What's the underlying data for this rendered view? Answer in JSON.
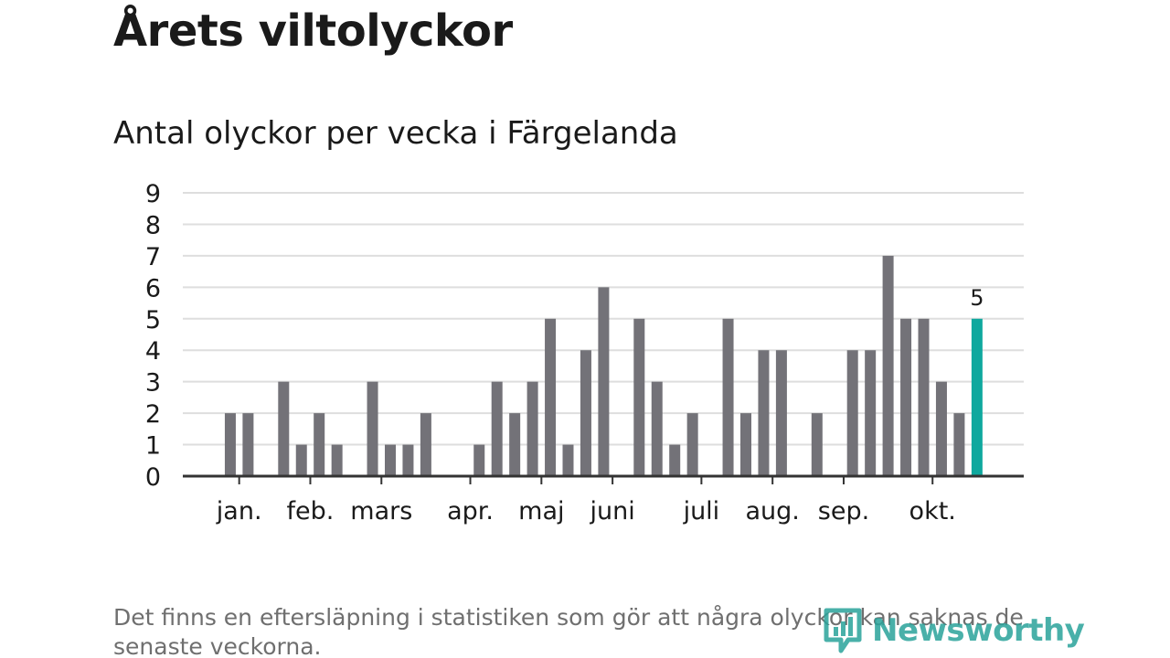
{
  "title": "Årets viltolyckor",
  "subtitle": "Antal olyckor per vecka i Färgelanda",
  "footnote": "Det finns en eftersläpning i statistiken som gör att några olyckor kan saknas de senaste veckorna.",
  "logo": {
    "text": "Newsworthy",
    "icon": "newsworthy-logo-icon"
  },
  "colors": {
    "bar": "#737278",
    "highlight": "#0fa89e",
    "grid": "#dedede",
    "axis": "#333333",
    "text": "#1a1a1a",
    "logo": "#2aa39b"
  },
  "chart_data": {
    "type": "bar",
    "title": "Antal olyckor per vecka i Färgelanda",
    "xlabel": "",
    "ylabel": "",
    "ylim": [
      0,
      9
    ],
    "yticks": [
      0,
      1,
      2,
      3,
      4,
      5,
      6,
      7,
      8,
      9
    ],
    "grid": true,
    "x": [
      1,
      2,
      3,
      4,
      5,
      6,
      7,
      8,
      9,
      10,
      11,
      12,
      13,
      14,
      15,
      16,
      17,
      18,
      19,
      20,
      21,
      22,
      23,
      24,
      25,
      26,
      27,
      28,
      29,
      30,
      31,
      32,
      33,
      34,
      35,
      36,
      37,
      38,
      39,
      40,
      41,
      42,
      43,
      44,
      45
    ],
    "values": [
      0,
      2,
      2,
      0,
      3,
      1,
      2,
      1,
      0,
      3,
      1,
      1,
      2,
      0,
      0,
      1,
      3,
      2,
      3,
      5,
      1,
      4,
      6,
      0,
      5,
      3,
      1,
      2,
      0,
      5,
      2,
      4,
      4,
      0,
      2,
      0,
      4,
      4,
      7,
      5,
      5,
      3,
      2,
      5,
      0
    ],
    "highlight_index": 43,
    "highlight_label": "5",
    "month_labels": [
      {
        "label": "jan.",
        "week": 2.5
      },
      {
        "label": "feb.",
        "week": 6.5
      },
      {
        "label": "mars",
        "week": 10.5
      },
      {
        "label": "apr.",
        "week": 15.5
      },
      {
        "label": "maj",
        "week": 19.5
      },
      {
        "label": "juni",
        "week": 23.5
      },
      {
        "label": "juli",
        "week": 28.5
      },
      {
        "label": "aug.",
        "week": 32.5
      },
      {
        "label": "sep.",
        "week": 36.5
      },
      {
        "label": "okt.",
        "week": 41.5
      }
    ]
  }
}
